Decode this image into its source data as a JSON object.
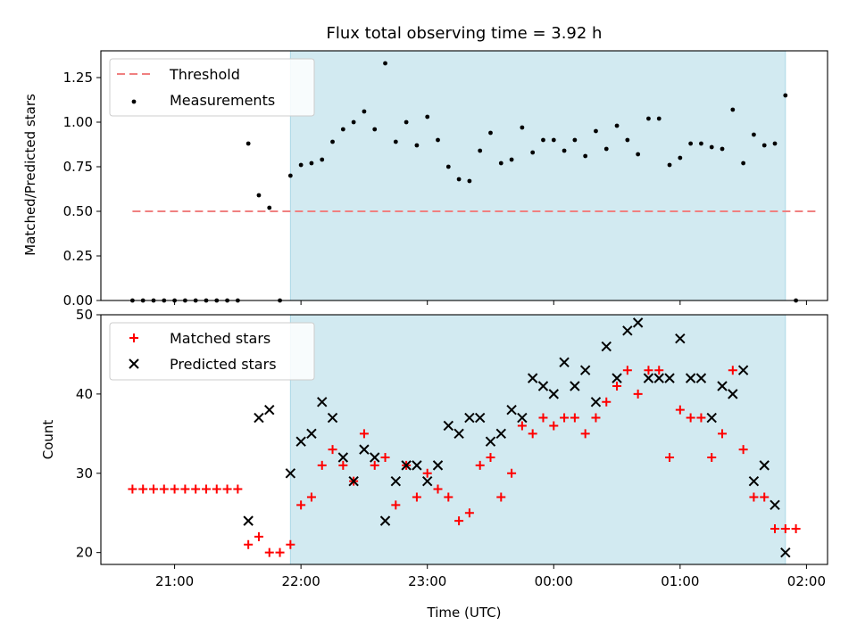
{
  "chart_data": [
    {
      "type": "scatter",
      "title": "Flux total observing time = 3.92 h",
      "ylabel": "Matched/Predicted stars",
      "xlim": [
        "20:25",
        "02:10"
      ],
      "ylim": [
        0,
        1.4
      ],
      "yticks": [
        "0.00",
        "0.25",
        "0.50",
        "0.75",
        "1.00",
        "1.25"
      ],
      "shaded_span": [
        "21:55",
        "01:50"
      ],
      "shade_color": "#add8e6",
      "legend_position": "upper-left",
      "threshold": {
        "name": "Threshold",
        "y": 0.5,
        "x_range": [
          "20:40",
          "02:05"
        ],
        "color": "#f08080",
        "style": "dashed"
      },
      "series": [
        {
          "name": "Measurements",
          "marker": "dot",
          "color": "#000000",
          "points": [
            [
              "20:40",
              0
            ],
            [
              "20:45",
              0
            ],
            [
              "20:50",
              0
            ],
            [
              "20:55",
              0
            ],
            [
              "21:00",
              0
            ],
            [
              "21:05",
              0
            ],
            [
              "21:10",
              0
            ],
            [
              "21:15",
              0
            ],
            [
              "21:20",
              0
            ],
            [
              "21:25",
              0
            ],
            [
              "21:30",
              0
            ],
            [
              "21:35",
              0.88
            ],
            [
              "21:40",
              0.59
            ],
            [
              "21:45",
              0.52
            ],
            [
              "21:50",
              0
            ],
            [
              "21:55",
              0.7
            ],
            [
              "22:00",
              0.76
            ],
            [
              "22:05",
              0.77
            ],
            [
              "22:10",
              0.79
            ],
            [
              "22:15",
              0.89
            ],
            [
              "22:20",
              0.96
            ],
            [
              "22:25",
              1.0
            ],
            [
              "22:30",
              1.06
            ],
            [
              "22:35",
              0.96
            ],
            [
              "22:40",
              1.33
            ],
            [
              "22:45",
              0.89
            ],
            [
              "22:50",
              1.0
            ],
            [
              "22:55",
              0.87
            ],
            [
              "23:00",
              1.03
            ],
            [
              "23:05",
              0.9
            ],
            [
              "23:10",
              0.75
            ],
            [
              "23:15",
              0.68
            ],
            [
              "23:20",
              0.67
            ],
            [
              "23:25",
              0.84
            ],
            [
              "23:30",
              0.94
            ],
            [
              "23:35",
              0.77
            ],
            [
              "23:40",
              0.79
            ],
            [
              "23:45",
              0.97
            ],
            [
              "23:50",
              0.83
            ],
            [
              "23:55",
              0.9
            ],
            [
              "00:00",
              0.9
            ],
            [
              "00:05",
              0.84
            ],
            [
              "00:10",
              0.9
            ],
            [
              "00:15",
              0.81
            ],
            [
              "00:20",
              0.95
            ],
            [
              "00:25",
              0.85
            ],
            [
              "00:30",
              0.98
            ],
            [
              "00:35",
              0.9
            ],
            [
              "00:40",
              0.82
            ],
            [
              "00:45",
              1.02
            ],
            [
              "00:50",
              1.02
            ],
            [
              "00:55",
              0.76
            ],
            [
              "01:00",
              0.8
            ],
            [
              "01:05",
              0.88
            ],
            [
              "01:10",
              0.88
            ],
            [
              "01:15",
              0.86
            ],
            [
              "01:20",
              0.85
            ],
            [
              "01:25",
              1.07
            ],
            [
              "01:30",
              0.77
            ],
            [
              "01:35",
              0.93
            ],
            [
              "01:40",
              0.87
            ],
            [
              "01:45",
              0.88
            ],
            [
              "01:50",
              1.15
            ],
            [
              "01:55",
              0
            ]
          ]
        }
      ]
    },
    {
      "type": "scatter",
      "xlabel": "Time (UTC)",
      "ylabel": "Count",
      "xlim": [
        "20:25",
        "02:10"
      ],
      "ylim": [
        18.5,
        50
      ],
      "xticks": [
        "21:00",
        "22:00",
        "23:00",
        "00:00",
        "01:00",
        "02:00"
      ],
      "yticks": [
        "20",
        "30",
        "40",
        "50"
      ],
      "shaded_span": [
        "21:55",
        "01:50"
      ],
      "shade_color": "#add8e6",
      "legend_position": "upper-left",
      "series": [
        {
          "name": "Matched stars",
          "marker": "plus",
          "color": "#ff0000",
          "points": [
            [
              "20:40",
              28
            ],
            [
              "20:45",
              28
            ],
            [
              "20:50",
              28
            ],
            [
              "20:55",
              28
            ],
            [
              "21:00",
              28
            ],
            [
              "21:05",
              28
            ],
            [
              "21:10",
              28
            ],
            [
              "21:15",
              28
            ],
            [
              "21:20",
              28
            ],
            [
              "21:25",
              28
            ],
            [
              "21:30",
              28
            ],
            [
              "21:35",
              21
            ],
            [
              "21:40",
              22
            ],
            [
              "21:45",
              20
            ],
            [
              "21:50",
              20
            ],
            [
              "21:55",
              21
            ],
            [
              "22:00",
              26
            ],
            [
              "22:05",
              27
            ],
            [
              "22:10",
              31
            ],
            [
              "22:15",
              33
            ],
            [
              "22:20",
              31
            ],
            [
              "22:25",
              29
            ],
            [
              "22:30",
              35
            ],
            [
              "22:35",
              31
            ],
            [
              "22:40",
              32
            ],
            [
              "22:45",
              26
            ],
            [
              "22:50",
              31
            ],
            [
              "22:55",
              27
            ],
            [
              "23:00",
              30
            ],
            [
              "23:05",
              28
            ],
            [
              "23:10",
              27
            ],
            [
              "23:15",
              24
            ],
            [
              "23:20",
              25
            ],
            [
              "23:25",
              31
            ],
            [
              "23:30",
              32
            ],
            [
              "23:35",
              27
            ],
            [
              "23:40",
              30
            ],
            [
              "23:45",
              36
            ],
            [
              "23:50",
              35
            ],
            [
              "23:55",
              37
            ],
            [
              "00:00",
              36
            ],
            [
              "00:05",
              37
            ],
            [
              "00:10",
              37
            ],
            [
              "00:15",
              35
            ],
            [
              "00:20",
              37
            ],
            [
              "00:25",
              39
            ],
            [
              "00:30",
              41
            ],
            [
              "00:35",
              43
            ],
            [
              "00:40",
              40
            ],
            [
              "00:45",
              43
            ],
            [
              "00:50",
              43
            ],
            [
              "00:55",
              32
            ],
            [
              "01:00",
              38
            ],
            [
              "01:05",
              37
            ],
            [
              "01:10",
              37
            ],
            [
              "01:15",
              32
            ],
            [
              "01:20",
              35
            ],
            [
              "01:25",
              43
            ],
            [
              "01:30",
              33
            ],
            [
              "01:35",
              27
            ],
            [
              "01:40",
              27
            ],
            [
              "01:45",
              23
            ],
            [
              "01:50",
              23
            ],
            [
              "01:55",
              23
            ]
          ]
        },
        {
          "name": "Predicted stars",
          "marker": "x",
          "color": "#000000",
          "points": [
            [
              "21:35",
              24
            ],
            [
              "21:40",
              37
            ],
            [
              "21:45",
              38
            ],
            [
              "21:55",
              30
            ],
            [
              "22:00",
              34
            ],
            [
              "22:05",
              35
            ],
            [
              "22:10",
              39
            ],
            [
              "22:15",
              37
            ],
            [
              "22:20",
              32
            ],
            [
              "22:25",
              29
            ],
            [
              "22:30",
              33
            ],
            [
              "22:35",
              32
            ],
            [
              "22:40",
              24
            ],
            [
              "22:45",
              29
            ],
            [
              "22:50",
              31
            ],
            [
              "22:55",
              31
            ],
            [
              "23:00",
              29
            ],
            [
              "23:05",
              31
            ],
            [
              "23:10",
              36
            ],
            [
              "23:15",
              35
            ],
            [
              "23:20",
              37
            ],
            [
              "23:25",
              37
            ],
            [
              "23:30",
              34
            ],
            [
              "23:35",
              35
            ],
            [
              "23:40",
              38
            ],
            [
              "23:45",
              37
            ],
            [
              "23:50",
              42
            ],
            [
              "23:55",
              41
            ],
            [
              "00:00",
              40
            ],
            [
              "00:05",
              44
            ],
            [
              "00:10",
              41
            ],
            [
              "00:15",
              43
            ],
            [
              "00:20",
              39
            ],
            [
              "00:25",
              46
            ],
            [
              "00:30",
              42
            ],
            [
              "00:35",
              48
            ],
            [
              "00:40",
              49
            ],
            [
              "00:45",
              42
            ],
            [
              "00:50",
              42
            ],
            [
              "00:55",
              42
            ],
            [
              "01:00",
              47
            ],
            [
              "01:05",
              42
            ],
            [
              "01:10",
              42
            ],
            [
              "01:15",
              37
            ],
            [
              "01:20",
              41
            ],
            [
              "01:25",
              40
            ],
            [
              "01:30",
              43
            ],
            [
              "01:35",
              29
            ],
            [
              "01:40",
              31
            ],
            [
              "01:45",
              26
            ],
            [
              "01:50",
              20
            ]
          ]
        }
      ]
    }
  ]
}
